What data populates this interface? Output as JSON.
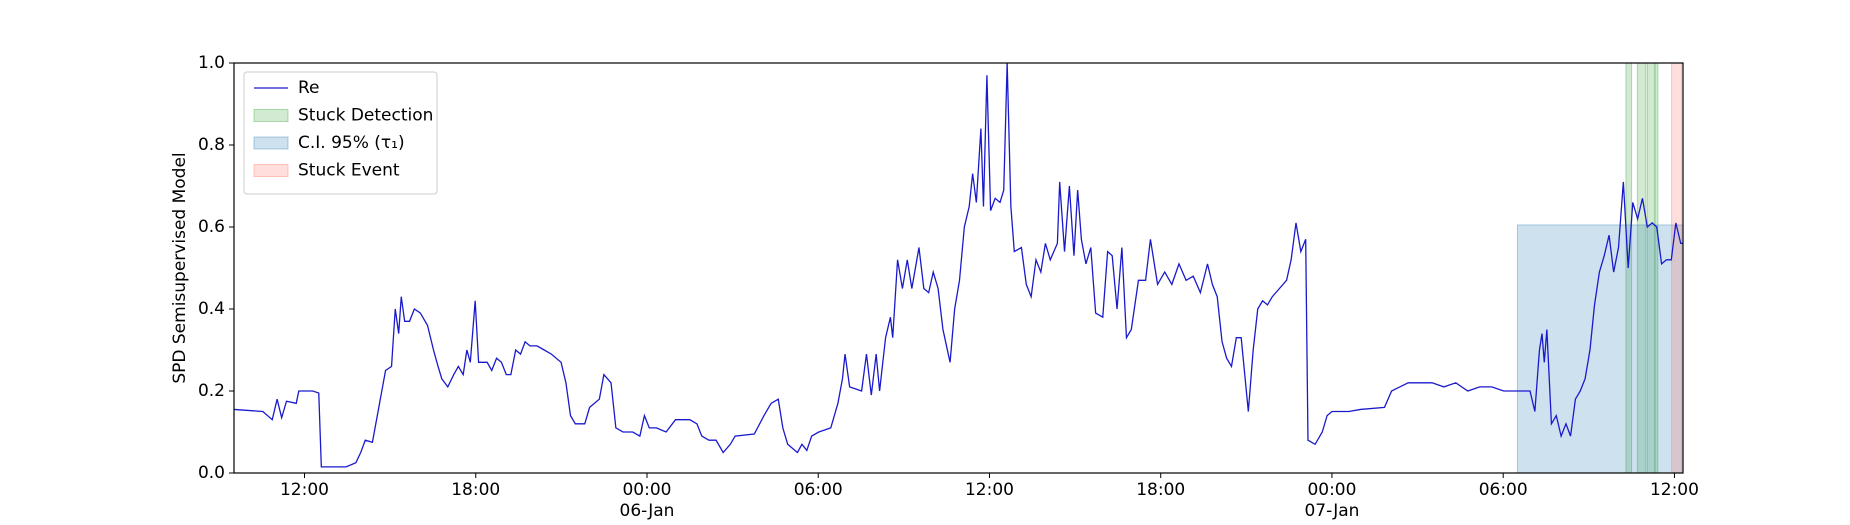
{
  "chart_data": {
    "type": "line",
    "ylabel": "SPD Semisupervised Model",
    "xlim": [
      9.53,
      60.3
    ],
    "ylim": [
      0,
      1
    ],
    "xticks": [
      {
        "value": 12,
        "label": "12:00"
      },
      {
        "value": 18,
        "label": "18:00"
      },
      {
        "value": 24,
        "label": "00:00",
        "date": "06-Jan"
      },
      {
        "value": 30,
        "label": "06:00"
      },
      {
        "value": 36,
        "label": "12:00"
      },
      {
        "value": 42,
        "label": "18:00"
      },
      {
        "value": 48,
        "label": "00:00",
        "date": "07-Jan"
      },
      {
        "value": 54,
        "label": "06:00"
      },
      {
        "value": 60,
        "label": "12:00"
      }
    ],
    "yticks": [
      {
        "value": 0,
        "label": "0.0"
      },
      0.2,
      0.4,
      0.6,
      0.8,
      {
        "value": 1,
        "label": "1.0"
      }
    ],
    "legend": "upper left",
    "series": [
      {
        "name": "Re",
        "color": "#1a1acc",
        "x": [
          9.53,
          10.54,
          10.87,
          11.04,
          11.2,
          11.37,
          11.71,
          11.8,
          12.29,
          12.5,
          12.59,
          13.46,
          13.8,
          13.97,
          14.13,
          14.38,
          14.63,
          14.84,
          15.05,
          15.18,
          15.3,
          15.39,
          15.51,
          15.68,
          15.85,
          16.06,
          16.31,
          16.52,
          16.68,
          16.81,
          17.02,
          17.23,
          17.39,
          17.56,
          17.69,
          17.81,
          17.98,
          18.1,
          18.4,
          18.56,
          18.73,
          18.9,
          19.07,
          19.23,
          19.4,
          19.57,
          19.73,
          19.9,
          20.15,
          20.4,
          20.65,
          20.99,
          21.16,
          21.32,
          21.49,
          21.82,
          21.99,
          22.16,
          22.33,
          22.49,
          22.74,
          22.91,
          23.16,
          23.5,
          23.75,
          23.91,
          24.08,
          24.33,
          24.67,
          25.0,
          25.5,
          25.75,
          25.92,
          26.17,
          26.42,
          26.67,
          26.92,
          27.09,
          27.76,
          28.1,
          28.35,
          28.6,
          28.76,
          28.93,
          29.27,
          29.43,
          29.6,
          29.77,
          30.02,
          30.44,
          30.69,
          30.85,
          30.94,
          31.1,
          31.52,
          31.69,
          31.86,
          32.03,
          32.15,
          32.36,
          32.53,
          32.61,
          32.78,
          32.95,
          33.12,
          33.28,
          33.53,
          33.7,
          33.87,
          34.03,
          34.2,
          34.37,
          34.62,
          34.78,
          34.95,
          35.12,
          35.29,
          35.41,
          35.54,
          35.7,
          35.79,
          35.91,
          36.04,
          36.2,
          36.37,
          36.5,
          36.62,
          36.75,
          36.87,
          37.12,
          37.29,
          37.46,
          37.63,
          37.8,
          37.96,
          38.13,
          38.38,
          38.46,
          38.63,
          38.8,
          38.96,
          39.09,
          39.22,
          39.38,
          39.55,
          39.72,
          39.97,
          40.14,
          40.3,
          40.47,
          40.64,
          40.8,
          40.97,
          41.22,
          41.47,
          41.64,
          41.89,
          42.14,
          42.39,
          42.64,
          42.89,
          43.14,
          43.39,
          43.64,
          43.81,
          43.98,
          44.15,
          44.31,
          44.48,
          44.65,
          44.82,
          45.07,
          45.24,
          45.4,
          45.57,
          45.74,
          45.91,
          46.16,
          46.41,
          46.57,
          46.74,
          46.91,
          47.08,
          47.16,
          47.41,
          47.66,
          47.83,
          48.0,
          48.17,
          48.59,
          49.0,
          49.84,
          50.09,
          50.67,
          51.51,
          51.92,
          52.34,
          52.76,
          53.18,
          53.6,
          54.02,
          54.77,
          54.94,
          55.11,
          55.27,
          55.36,
          55.44,
          55.53,
          55.69,
          55.86,
          56.03,
          56.2,
          56.36,
          56.53,
          56.7,
          56.87,
          57.04,
          57.2,
          57.37,
          57.54,
          57.71,
          57.87,
          58.04,
          58.21,
          58.38,
          58.54,
          58.71,
          58.88,
          59.05,
          59.22,
          59.38,
          59.55,
          59.72,
          59.89,
          60.05,
          60.22,
          60.3
        ],
        "values": [
          0.155,
          0.15,
          0.13,
          0.18,
          0.135,
          0.175,
          0.17,
          0.2,
          0.2,
          0.195,
          0.015,
          0.015,
          0.025,
          0.05,
          0.08,
          0.075,
          0.17,
          0.25,
          0.26,
          0.4,
          0.34,
          0.43,
          0.37,
          0.37,
          0.4,
          0.39,
          0.36,
          0.3,
          0.26,
          0.23,
          0.21,
          0.24,
          0.26,
          0.24,
          0.3,
          0.27,
          0.42,
          0.27,
          0.27,
          0.25,
          0.28,
          0.27,
          0.24,
          0.24,
          0.3,
          0.29,
          0.32,
          0.31,
          0.31,
          0.3,
          0.29,
          0.27,
          0.22,
          0.14,
          0.12,
          0.12,
          0.16,
          0.17,
          0.18,
          0.24,
          0.22,
          0.11,
          0.1,
          0.1,
          0.09,
          0.14,
          0.11,
          0.11,
          0.1,
          0.13,
          0.13,
          0.12,
          0.09,
          0.08,
          0.08,
          0.05,
          0.07,
          0.09,
          0.095,
          0.14,
          0.17,
          0.18,
          0.11,
          0.07,
          0.05,
          0.07,
          0.055,
          0.09,
          0.1,
          0.11,
          0.17,
          0.23,
          0.29,
          0.21,
          0.2,
          0.29,
          0.19,
          0.29,
          0.2,
          0.33,
          0.38,
          0.33,
          0.52,
          0.45,
          0.52,
          0.45,
          0.55,
          0.45,
          0.44,
          0.49,
          0.45,
          0.35,
          0.27,
          0.4,
          0.47,
          0.6,
          0.65,
          0.73,
          0.66,
          0.84,
          0.65,
          0.97,
          0.64,
          0.67,
          0.66,
          0.69,
          1.0,
          0.65,
          0.54,
          0.55,
          0.46,
          0.43,
          0.52,
          0.49,
          0.56,
          0.52,
          0.56,
          0.71,
          0.54,
          0.7,
          0.53,
          0.69,
          0.57,
          0.51,
          0.55,
          0.39,
          0.38,
          0.54,
          0.53,
          0.4,
          0.55,
          0.33,
          0.35,
          0.47,
          0.47,
          0.57,
          0.46,
          0.49,
          0.46,
          0.51,
          0.47,
          0.48,
          0.44,
          0.51,
          0.46,
          0.43,
          0.32,
          0.28,
          0.26,
          0.33,
          0.33,
          0.15,
          0.3,
          0.4,
          0.42,
          0.41,
          0.43,
          0.45,
          0.47,
          0.52,
          0.61,
          0.54,
          0.57,
          0.08,
          0.07,
          0.1,
          0.14,
          0.15,
          0.15,
          0.15,
          0.155,
          0.16,
          0.2,
          0.22,
          0.22,
          0.21,
          0.22,
          0.2,
          0.21,
          0.21,
          0.2,
          0.2,
          0.2,
          0.15,
          0.3,
          0.34,
          0.27,
          0.35,
          0.12,
          0.14,
          0.09,
          0.12,
          0.09,
          0.18,
          0.2,
          0.23,
          0.3,
          0.41,
          0.49,
          0.53,
          0.58,
          0.49,
          0.55,
          0.71,
          0.5,
          0.66,
          0.62,
          0.67,
          0.6,
          0.61,
          0.6,
          0.51,
          0.52,
          0.52,
          0.61,
          0.56,
          0.56
        ]
      }
    ],
    "spans": [
      {
        "name": "Stuck Detection",
        "color": "#2ca02c",
        "ranges": [
          [
            58.3,
            58.5
          ],
          [
            58.7,
            59.0
          ],
          [
            59.05,
            59.3
          ],
          [
            59.33,
            59.42
          ]
        ]
      },
      {
        "name": "C.I. 95% (τ₁)",
        "color": "#1f77b4",
        "ranges": [
          [
            54.5,
            60.3
          ]
        ],
        "ymax": 0.605
      },
      {
        "name": "Stuck Event",
        "color": "#ff6a5a",
        "ranges": [
          [
            59.9,
            60.25
          ]
        ]
      }
    ]
  }
}
